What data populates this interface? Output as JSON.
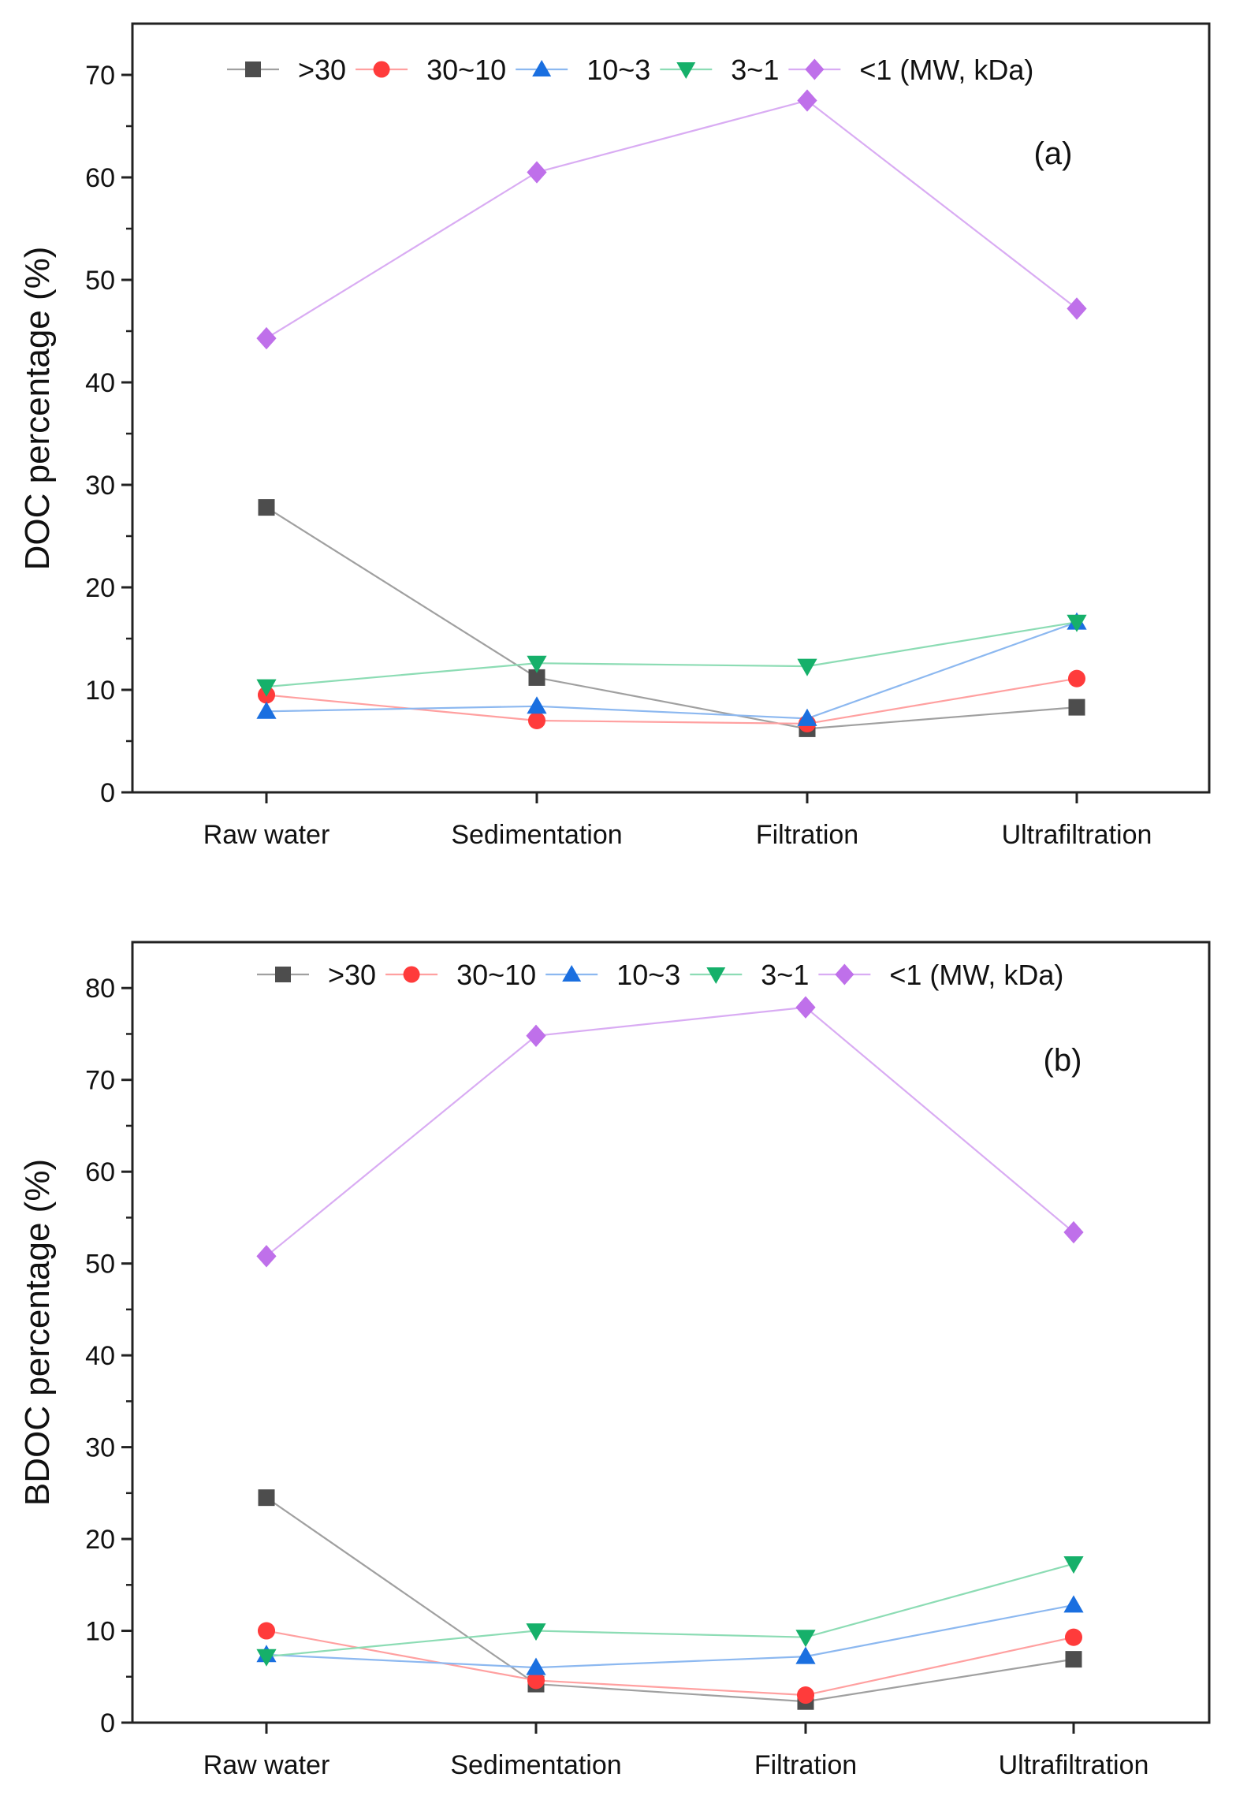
{
  "chart_data": [
    {
      "type": "line",
      "panel_label": "(a)",
      "ylabel": "DOC percentage (%)",
      "xlabel": "",
      "categories": [
        "Raw water",
        "Sedimentation",
        "Filtration",
        "Ultrafiltration"
      ],
      "ylim": [
        0,
        75
      ],
      "yticks": [
        0,
        10,
        20,
        30,
        40,
        50,
        60,
        70
      ],
      "legend_position": "top",
      "legend_labels": [
        ">30",
        "30~10",
        "10~3",
        "3~1",
        "<1 (MW, kDa)"
      ],
      "series": [
        {
          "name": ">30",
          "marker": "square",
          "color": "#4d4d4d",
          "line_color": "#a0a0a0",
          "values": [
            27.8,
            11.2,
            6.2,
            8.3
          ]
        },
        {
          "name": "30~10",
          "marker": "circle",
          "color": "#ff3b3b",
          "line_color": "#ffa0a0",
          "values": [
            9.5,
            7.0,
            6.7,
            11.1
          ]
        },
        {
          "name": "10~3",
          "marker": "triangle-up",
          "color": "#1a6fe0",
          "line_color": "#8cb8f0",
          "values": [
            7.9,
            8.4,
            7.2,
            16.6
          ]
        },
        {
          "name": "3~1",
          "marker": "triangle-down",
          "color": "#16b06a",
          "line_color": "#8cdcb4",
          "values": [
            10.3,
            12.6,
            12.3,
            16.6
          ]
        },
        {
          "name": "<1",
          "marker": "diamond",
          "color": "#bf70ea",
          "line_color": "#d9acf3",
          "values": [
            44.3,
            60.5,
            67.5,
            47.2
          ]
        }
      ]
    },
    {
      "type": "line",
      "panel_label": "(b)",
      "ylabel": "BDOC percentage (%)",
      "xlabel": "",
      "categories": [
        "Raw water",
        "Sedimentation",
        "Filtration",
        "Ultrafiltration"
      ],
      "ylim": [
        0,
        85
      ],
      "yticks": [
        0,
        10,
        20,
        30,
        40,
        50,
        60,
        70,
        80
      ],
      "legend_position": "top",
      "legend_labels": [
        ">30",
        "30~10",
        "10~3",
        "3~1",
        "<1 (MW, kDa)"
      ],
      "series": [
        {
          "name": ">30",
          "marker": "square",
          "color": "#4d4d4d",
          "line_color": "#a0a0a0",
          "values": [
            24.5,
            4.2,
            2.3,
            6.9
          ]
        },
        {
          "name": "30~10",
          "marker": "circle",
          "color": "#ff3b3b",
          "line_color": "#ffa0a0",
          "values": [
            10.0,
            4.6,
            3.0,
            9.3
          ]
        },
        {
          "name": "10~3",
          "marker": "triangle-up",
          "color": "#1a6fe0",
          "line_color": "#8cb8f0",
          "values": [
            7.4,
            6.0,
            7.2,
            12.8
          ]
        },
        {
          "name": "3~1",
          "marker": "triangle-down",
          "color": "#16b06a",
          "line_color": "#8cdcb4",
          "values": [
            7.2,
            10.0,
            9.3,
            17.3
          ]
        },
        {
          "name": "<1",
          "marker": "diamond",
          "color": "#bf70ea",
          "line_color": "#d9acf3",
          "values": [
            50.8,
            74.8,
            77.9,
            53.4
          ]
        }
      ]
    }
  ]
}
